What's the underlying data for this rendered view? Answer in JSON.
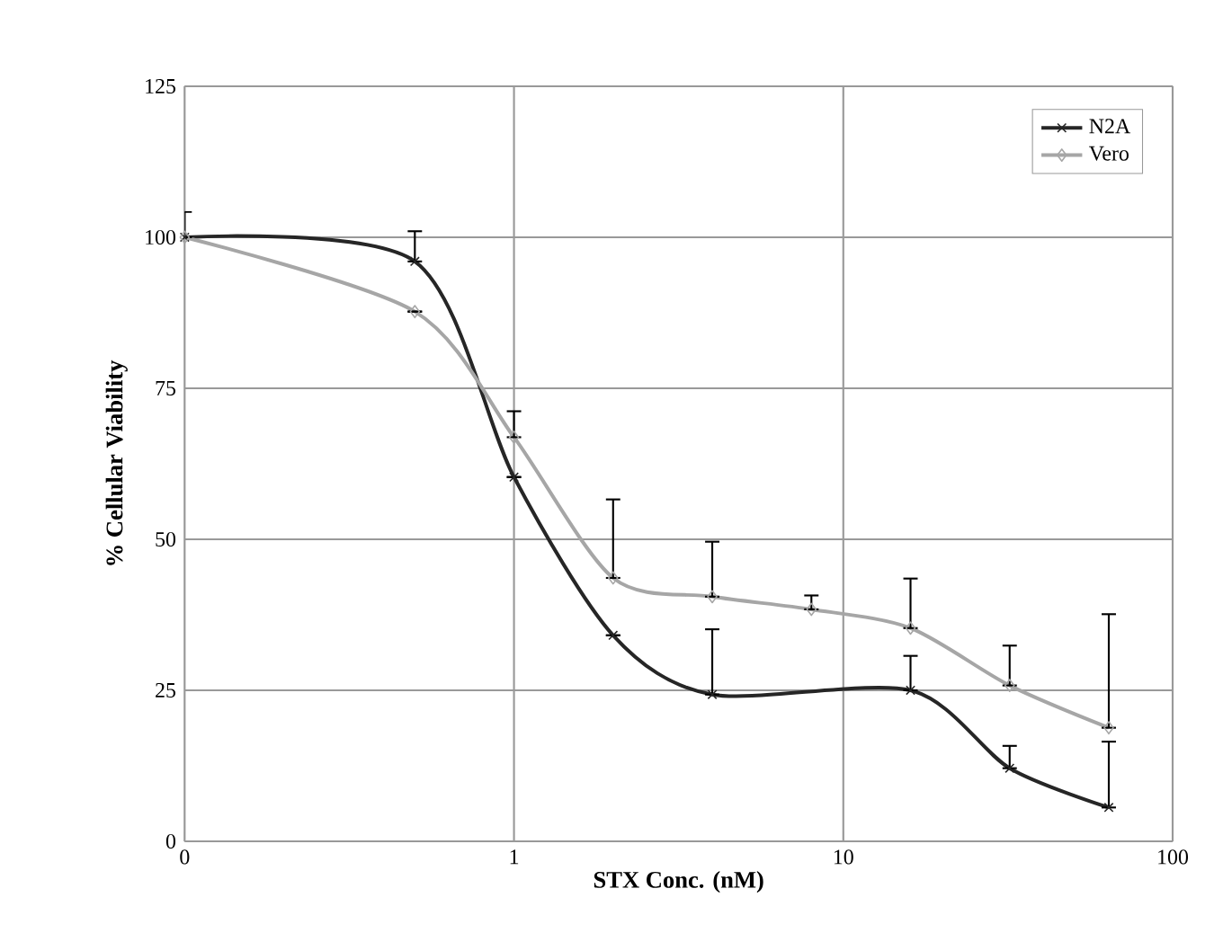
{
  "chart_data": {
    "type": "line",
    "xlabel": "STX Conc. (nM)",
    "ylabel": "% Cellular Viability",
    "log": "x",
    "xlim": [
      0.1,
      100
    ],
    "xticks": [
      {
        "value": 0.1,
        "label": "0"
      },
      1,
      10,
      100
    ],
    "ylim": [
      0,
      125
    ],
    "yticks": [
      0,
      25,
      50,
      75,
      100,
      125
    ],
    "grid": true,
    "legend": "top right",
    "series": [
      {
        "name": "N2A",
        "color": "#262626",
        "marker": "cross",
        "x": [
          0.1,
          0.5,
          1,
          2,
          4,
          16,
          32,
          64
        ],
        "values": [
          100,
          96,
          60.3,
          34.1,
          24.3,
          25.0,
          12.1,
          5.6
        ],
        "errors": [
          [
            100,
            104.2
          ],
          [
            96,
            101
          ],
          null,
          null,
          [
            24.3,
            35.1
          ],
          [
            25.0,
            30.7
          ],
          [
            12.1,
            15.8
          ],
          [
            5.6,
            16.5
          ]
        ]
      },
      {
        "name": "Vero",
        "color": "#a6a6a6",
        "marker": "diamond",
        "x": [
          0.1,
          0.5,
          1,
          2,
          4,
          8,
          16,
          32,
          64
        ],
        "values": [
          100,
          87.7,
          66.9,
          43.6,
          40.5,
          38.4,
          35.3,
          25.8,
          18.8
        ],
        "errors": [
          null,
          null,
          [
            66.9,
            71.2
          ],
          [
            43.6,
            56.6
          ],
          [
            40.5,
            49.6
          ],
          [
            38.4,
            40.7
          ],
          [
            35.3,
            43.5
          ],
          [
            25.8,
            32.4
          ],
          [
            18.8,
            37.6
          ]
        ]
      }
    ]
  }
}
